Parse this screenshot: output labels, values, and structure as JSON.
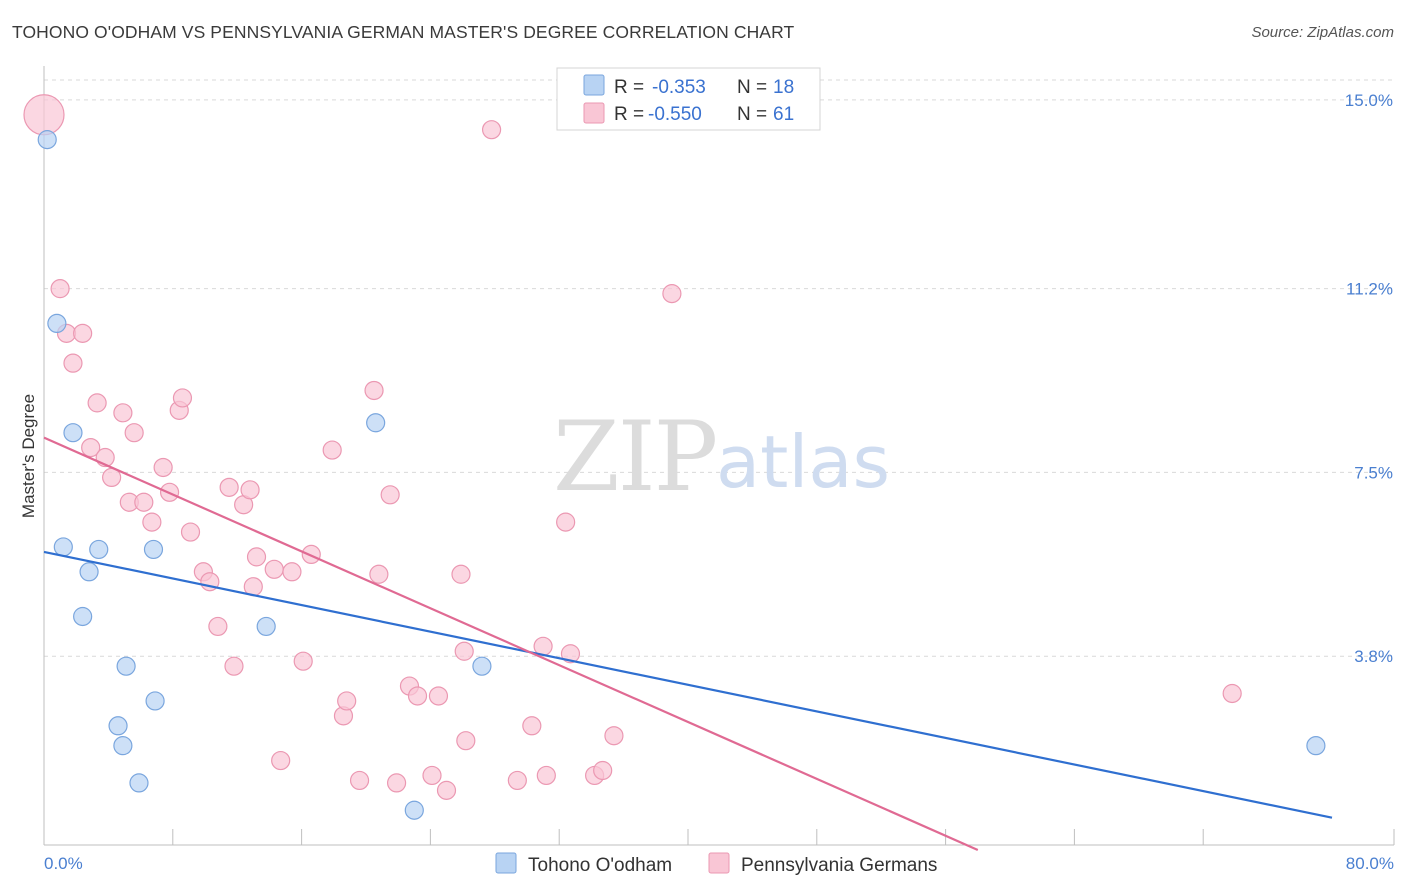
{
  "header": {
    "title": "TOHONO O'ODHAM VS PENNSYLVANIA GERMAN MASTER'S DEGREE CORRELATION CHART",
    "source": "Source: ZipAtlas.com"
  },
  "legend": {
    "r_label": "R = ",
    "n_label": "N = ",
    "items": [
      {
        "name": "Tohono O'odham",
        "r": "-0.353",
        "n": "18"
      },
      {
        "name": "Pennsylvania Germans",
        "r": "-0.550",
        "n": "61"
      }
    ]
  },
  "watermark": {
    "zip": "ZIP",
    "atlas": "atlas"
  },
  "colors": {
    "blue_fill": "#b8d3f3",
    "blue_stroke": "#7aa6de",
    "blue_line": "#2f6fd0",
    "pink_fill": "#f9c6d5",
    "pink_stroke": "#eb98b2",
    "pink_line": "#e06a93",
    "grid": "#d9d9d9",
    "tick_text": "#4a7fd0"
  },
  "chart_data": {
    "type": "scatter",
    "title": "TOHONO O'ODHAM VS PENNSYLVANIA GERMAN MASTER'S DEGREE CORRELATION CHART",
    "xlabel": "",
    "ylabel": "Master's Degree",
    "xlim": [
      0,
      80
    ],
    "ylim": [
      0,
      15.4
    ],
    "y_ticks": [
      {
        "value": 3.8,
        "label": "3.8%"
      },
      {
        "value": 7.5,
        "label": "7.5%"
      },
      {
        "value": 11.2,
        "label": "11.2%"
      },
      {
        "value": 15.0,
        "label": "15.0%"
      }
    ],
    "x_tick_labels": {
      "left": "0.0%",
      "right": "80.0%"
    },
    "x_minor_ticks": [
      8,
      16,
      24,
      32,
      40,
      48,
      56,
      64,
      72,
      80
    ],
    "series": [
      {
        "name": "Tohono O'odham",
        "color": "blue",
        "trend": {
          "x": [
            0,
            80
          ],
          "y": [
            5.9,
            0.55
          ]
        },
        "points": [
          [
            0.2,
            14.2
          ],
          [
            0.8,
            10.5
          ],
          [
            1.2,
            6.0
          ],
          [
            1.8,
            8.3
          ],
          [
            2.4,
            4.6
          ],
          [
            2.8,
            5.5
          ],
          [
            3.4,
            5.95
          ],
          [
            5.1,
            3.6
          ],
          [
            4.6,
            2.4
          ],
          [
            4.9,
            2.0
          ],
          [
            5.9,
            1.25
          ],
          [
            6.9,
            2.9
          ],
          [
            6.8,
            5.95
          ],
          [
            13.8,
            4.4
          ],
          [
            20.6,
            8.5
          ],
          [
            27.2,
            3.6
          ],
          [
            23.0,
            0.7
          ],
          [
            79.0,
            2.0
          ]
        ]
      },
      {
        "name": "Pennsylvania Germans",
        "color": "pink",
        "trend": {
          "x": [
            0,
            58
          ],
          "y": [
            8.2,
            -0.1
          ]
        },
        "points": [
          [
            0.0,
            14.7,
            "big"
          ],
          [
            1.0,
            11.2
          ],
          [
            1.4,
            10.3
          ],
          [
            2.4,
            10.3
          ],
          [
            1.8,
            9.7
          ],
          [
            3.3,
            8.9
          ],
          [
            4.9,
            8.7
          ],
          [
            5.6,
            8.3
          ],
          [
            2.9,
            8.0
          ],
          [
            3.8,
            7.8
          ],
          [
            4.2,
            7.4
          ],
          [
            7.4,
            7.6
          ],
          [
            7.8,
            7.1
          ],
          [
            5.3,
            6.9
          ],
          [
            6.2,
            6.9
          ],
          [
            6.7,
            6.5
          ],
          [
            8.4,
            8.75
          ],
          [
            8.6,
            9.0
          ],
          [
            9.1,
            6.3
          ],
          [
            11.5,
            7.2
          ],
          [
            12.4,
            6.85
          ],
          [
            12.8,
            7.15
          ],
          [
            9.9,
            5.5
          ],
          [
            10.3,
            5.3
          ],
          [
            13.2,
            5.8
          ],
          [
            14.3,
            5.55
          ],
          [
            15.4,
            5.5
          ],
          [
            16.6,
            5.85
          ],
          [
            17.9,
            7.95
          ],
          [
            13.0,
            5.2
          ],
          [
            10.8,
            4.4
          ],
          [
            11.8,
            3.6
          ],
          [
            16.1,
            3.7
          ],
          [
            18.6,
            2.6
          ],
          [
            18.8,
            2.9
          ],
          [
            20.5,
            9.15
          ],
          [
            21.5,
            7.05
          ],
          [
            20.8,
            5.45
          ],
          [
            22.7,
            3.2
          ],
          [
            23.2,
            3.0
          ],
          [
            24.5,
            3.0
          ],
          [
            25.9,
            5.45
          ],
          [
            26.1,
            3.9
          ],
          [
            26.2,
            2.1
          ],
          [
            27.8,
            14.4
          ],
          [
            29.4,
            1.3
          ],
          [
            30.3,
            2.4
          ],
          [
            31.0,
            4.0
          ],
          [
            31.2,
            1.4
          ],
          [
            32.4,
            6.5
          ],
          [
            32.7,
            3.85
          ],
          [
            34.2,
            1.4
          ],
          [
            34.7,
            1.5
          ],
          [
            35.4,
            2.2
          ],
          [
            14.7,
            1.7
          ],
          [
            19.6,
            1.3
          ],
          [
            21.9,
            1.25
          ],
          [
            24.1,
            1.4
          ],
          [
            25.0,
            1.1
          ],
          [
            39.0,
            11.1
          ],
          [
            73.8,
            3.05
          ]
        ]
      }
    ]
  }
}
